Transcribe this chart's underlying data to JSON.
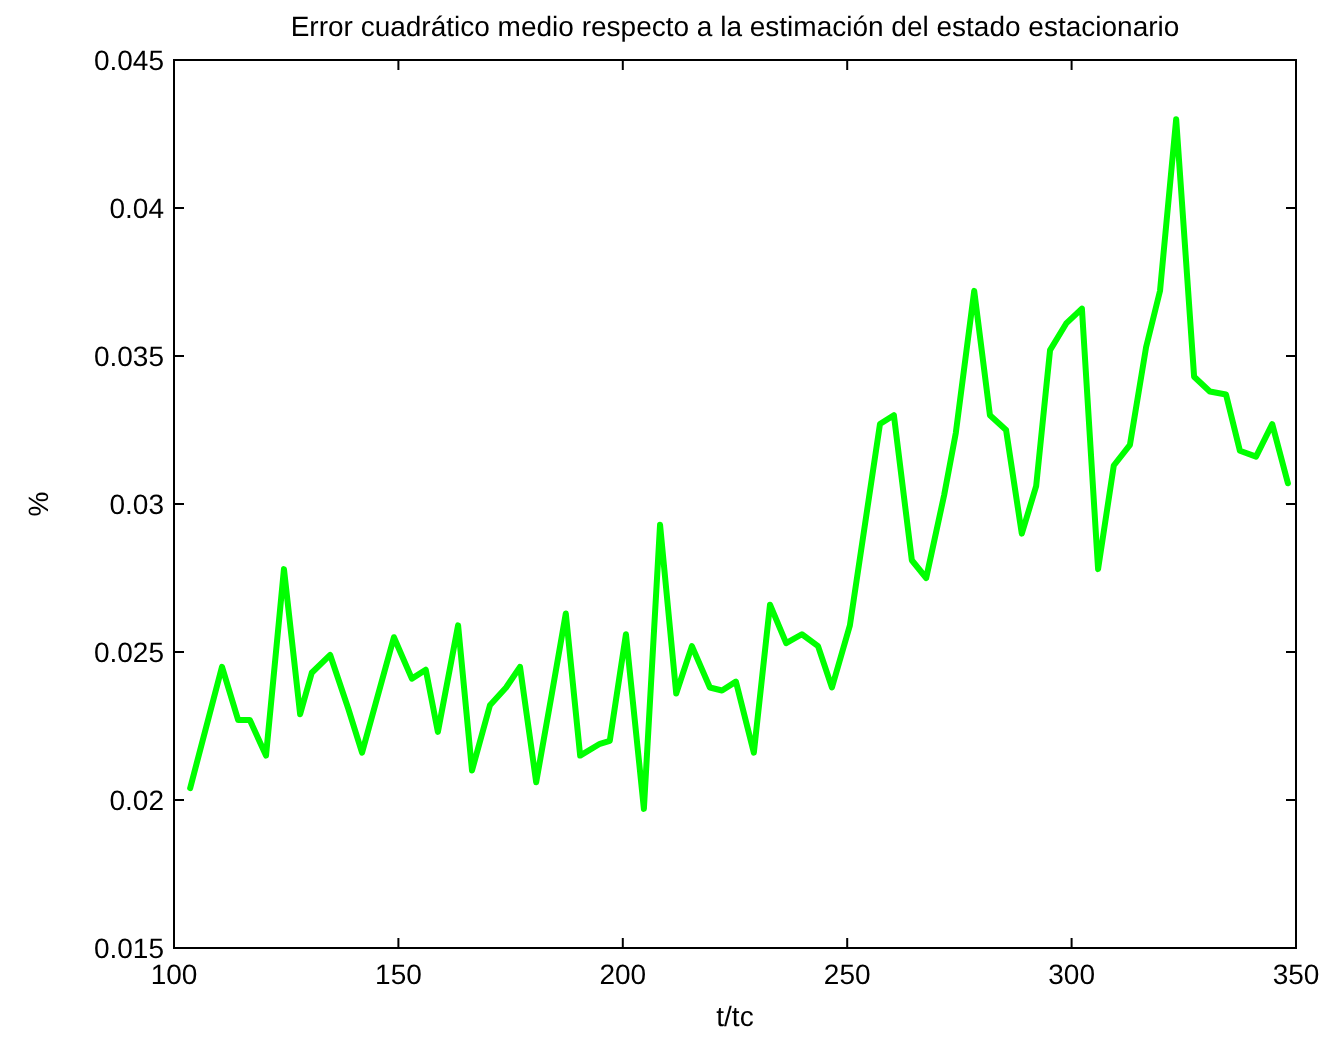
{
  "chart_data": {
    "type": "line",
    "title": "Error cuadrático medio respecto a la estimación del estado estacionario",
    "xlabel": "t/tc",
    "ylabel": "%",
    "xlim": [
      100,
      350
    ],
    "xticks": [
      100,
      150,
      200,
      250,
      300,
      350
    ],
    "ylim": [
      0.015,
      0.045
    ],
    "yticks": [
      0.015,
      0.02,
      0.025,
      0.03,
      0.035,
      0.04,
      0.045
    ],
    "grid": false,
    "marker": "none",
    "line_style": "solid",
    "series": [
      {
        "color": "#00ff00",
        "x": [
          103.6,
          110.7,
          114.3,
          116.9,
          120.5,
          124.5,
          128.1,
          130.7,
          134.8,
          138.8,
          141.9,
          149,
          153,
          156.1,
          158.8,
          163.3,
          166.4,
          170.4,
          174,
          177.1,
          180.7,
          184.2,
          187.3,
          190.5,
          194.9,
          197.1,
          200.7,
          204.7,
          208.3,
          211.9,
          215.4,
          219.4,
          222.1,
          225.2,
          229.2,
          232.8,
          236.4,
          239.9,
          243.5,
          246.6,
          250.6,
          257.3,
          260.4,
          264.4,
          267.6,
          271.6,
          274.2,
          278.3,
          281.8,
          285.4,
          288.9,
          292.1,
          295.2,
          298.8,
          302.3,
          305.9,
          309.4,
          313,
          316.6,
          319.7,
          323.3,
          327.3,
          330.8,
          334.4,
          337.5,
          341.1,
          344.7,
          348.2
        ],
        "values": [
          0.0204,
          0.0245,
          0.0227,
          0.0227,
          0.0215,
          0.0278,
          0.0229,
          0.0243,
          0.0249,
          0.0231,
          0.0216,
          0.0255,
          0.0241,
          0.0244,
          0.0223,
          0.0259,
          0.021,
          0.0232,
          0.0238,
          0.0245,
          0.0206,
          0.0236,
          0.0263,
          0.0215,
          0.0219,
          0.022,
          0.0256,
          0.0197,
          0.0293,
          0.0236,
          0.0252,
          0.0238,
          0.0237,
          0.024,
          0.0216,
          0.0266,
          0.0253,
          0.0256,
          0.0252,
          0.0238,
          0.0259,
          0.0327,
          0.033,
          0.0281,
          0.0275,
          0.0303,
          0.0324,
          0.0372,
          0.033,
          0.0325,
          0.029,
          0.0306,
          0.0352,
          0.0361,
          0.0366,
          0.0278,
          0.0313,
          0.032,
          0.0353,
          0.0372,
          0.043,
          0.0343,
          0.0338,
          0.0337,
          0.0318,
          0.0316,
          0.0327,
          0.0307
        ]
      }
    ]
  }
}
